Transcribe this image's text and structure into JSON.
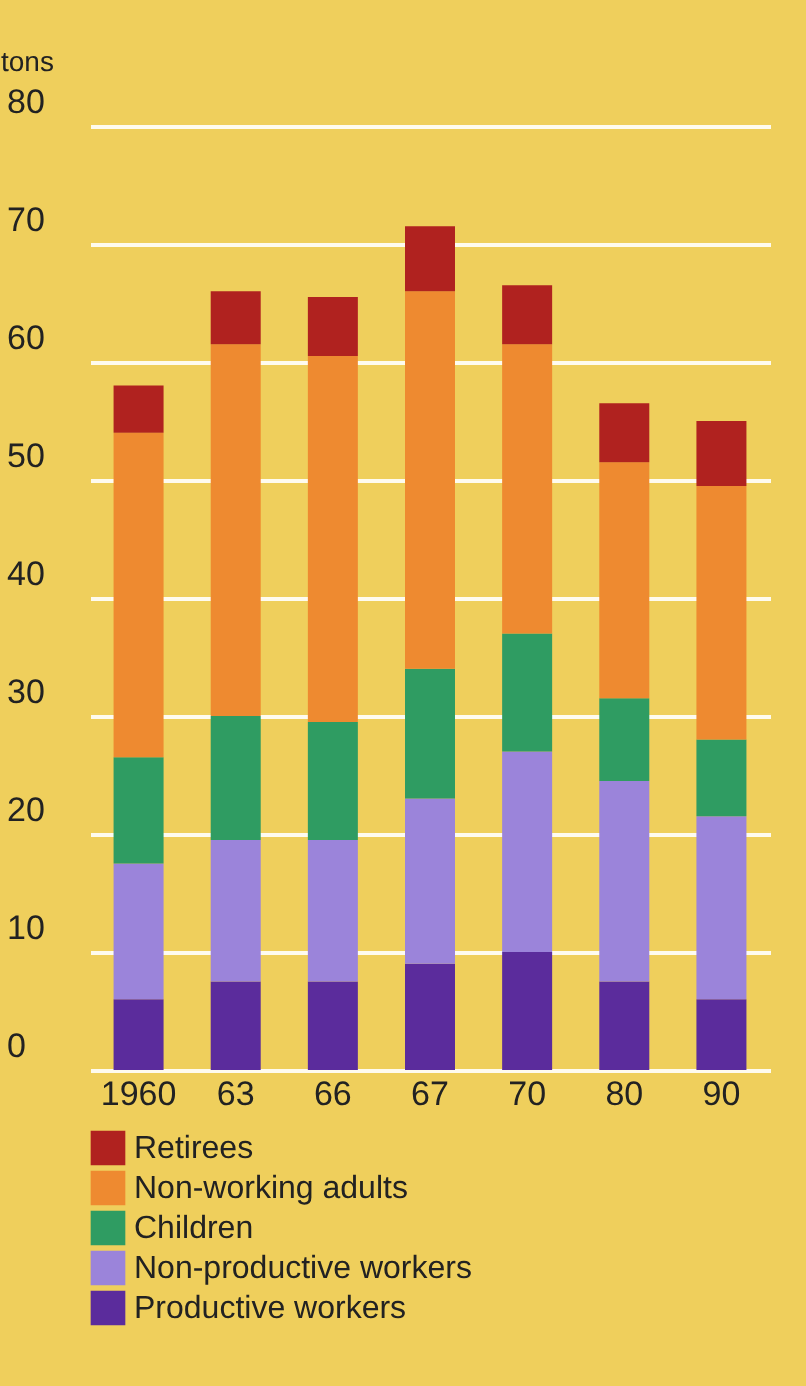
{
  "chart_data": {
    "type": "bar",
    "stacked": true,
    "ylabel": "tons",
    "categories": [
      "1960",
      "63",
      "66",
      "67",
      "70",
      "80",
      "90"
    ],
    "series": [
      {
        "name": "Productive workers",
        "color": "#5b2c9c",
        "values": [
          6,
          7.5,
          7.5,
          9,
          10,
          7.5,
          6
        ]
      },
      {
        "name": "Non-productive workers",
        "color": "#9b84da",
        "values": [
          11.5,
          12,
          12,
          14,
          17,
          17,
          15.5
        ]
      },
      {
        "name": "Children",
        "color": "#2f9c62",
        "values": [
          9,
          10.5,
          10,
          11,
          10,
          7,
          6.5
        ]
      },
      {
        "name": "Non-working adults",
        "color": "#ee8a30",
        "values": [
          27.5,
          31.5,
          31,
          32,
          24.5,
          20,
          21.5
        ]
      },
      {
        "name": "Retirees",
        "color": "#b0221f",
        "values": [
          4,
          4.5,
          5,
          5.5,
          5,
          5,
          5.5
        ]
      }
    ],
    "ylim": [
      0,
      80
    ],
    "yticks": [
      0,
      10,
      20,
      30,
      40,
      50,
      60,
      70,
      80
    ],
    "grid": "y",
    "legend": "bottom"
  }
}
